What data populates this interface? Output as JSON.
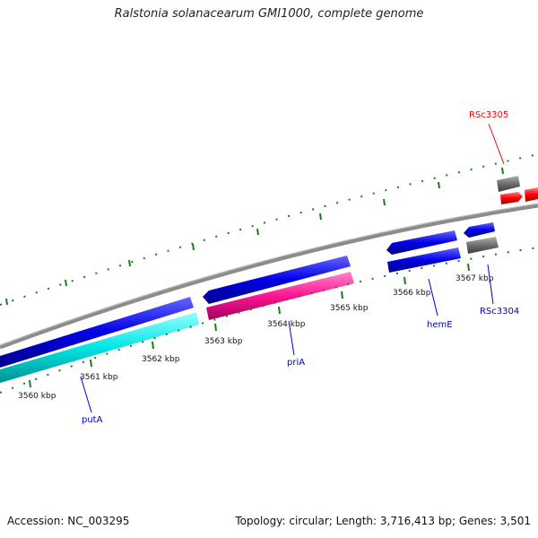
{
  "header": {
    "title": "Ralstonia solanacearum GMI1000, complete genome"
  },
  "footer": {
    "accession": "Accession: NC_003295",
    "summary": "Topology: circular; Length: 3,716,413 bp; Genes: 3,501"
  },
  "scale": {
    "tick_labels": [
      "3560 kbp",
      "3561 kbp",
      "3562 kbp",
      "3563 kbp",
      "3564 kbp",
      "3565 kbp",
      "3566 kbp",
      "3567 kbp"
    ]
  },
  "genes": [
    {
      "name": "putA",
      "color": "#0000cc"
    },
    {
      "name": "priA",
      "color": "#0000cc"
    },
    {
      "name": "hemE",
      "color": "#0000cc"
    },
    {
      "name": "RSc3304",
      "color": "#0000cc"
    },
    {
      "name": "RSc3305",
      "color": "#ff0000"
    }
  ],
  "colors": {
    "backbone": "#8c8c8c",
    "tick": "#1a7a1a",
    "blue_cds": "#0000e6",
    "cyan_cds": "#00e5e5",
    "magenta_cds": "#ff1493",
    "gray_feature": "#6e6e6e",
    "red_feature": "#ff0000"
  }
}
